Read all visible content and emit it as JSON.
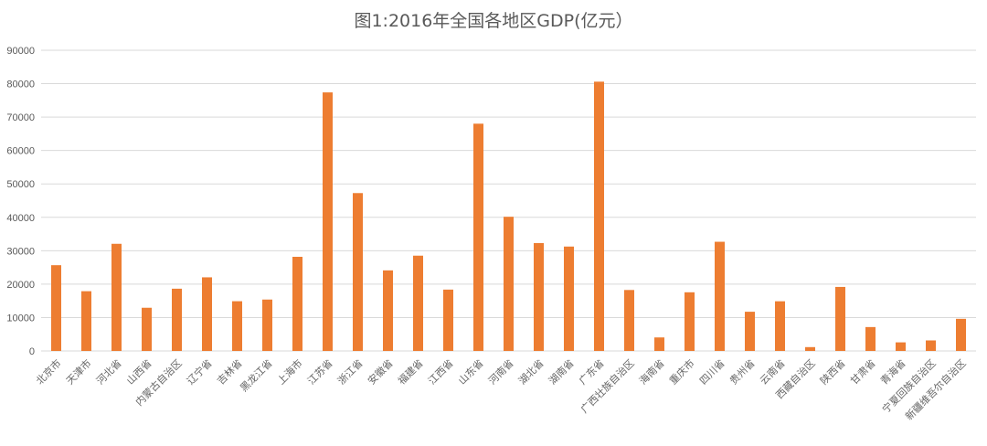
{
  "chart_data": {
    "type": "bar",
    "title": "图1:2016年全国各地区GDP(亿元）",
    "xlabel": "",
    "ylabel": "",
    "ylim": [
      0,
      90000
    ],
    "yticks": [
      0,
      10000,
      20000,
      30000,
      40000,
      50000,
      60000,
      70000,
      80000,
      90000
    ],
    "grid": true,
    "color": "#ED7D31",
    "categories": [
      "北京市",
      "天津市",
      "河北省",
      "山西省",
      "内蒙古自治区",
      "辽宁省",
      "吉林省",
      "黑龙江省",
      "上海市",
      "江苏省",
      "浙江省",
      "安徽省",
      "福建省",
      "江西省",
      "山东省",
      "河南省",
      "湖北省",
      "湖南省",
      "广东省",
      "广西壮族自治区",
      "海南省",
      "重庆市",
      "四川省",
      "贵州省",
      "云南省",
      "西藏自治区",
      "陕西省",
      "甘肃省",
      "青海省",
      "宁夏回族自治区",
      "新疆维吾尔自治区"
    ],
    "values": [
      25669,
      17885,
      32070,
      12928,
      18633,
      22038,
      14886,
      15386,
      28179,
      77388,
      47251,
      24118,
      28519,
      18364,
      68024,
      40160,
      32298,
      31245,
      80600,
      18245,
      4045,
      17559,
      32681,
      11734,
      14870,
      1148,
      19165,
      7152,
      2572,
      3150,
      9617
    ]
  }
}
